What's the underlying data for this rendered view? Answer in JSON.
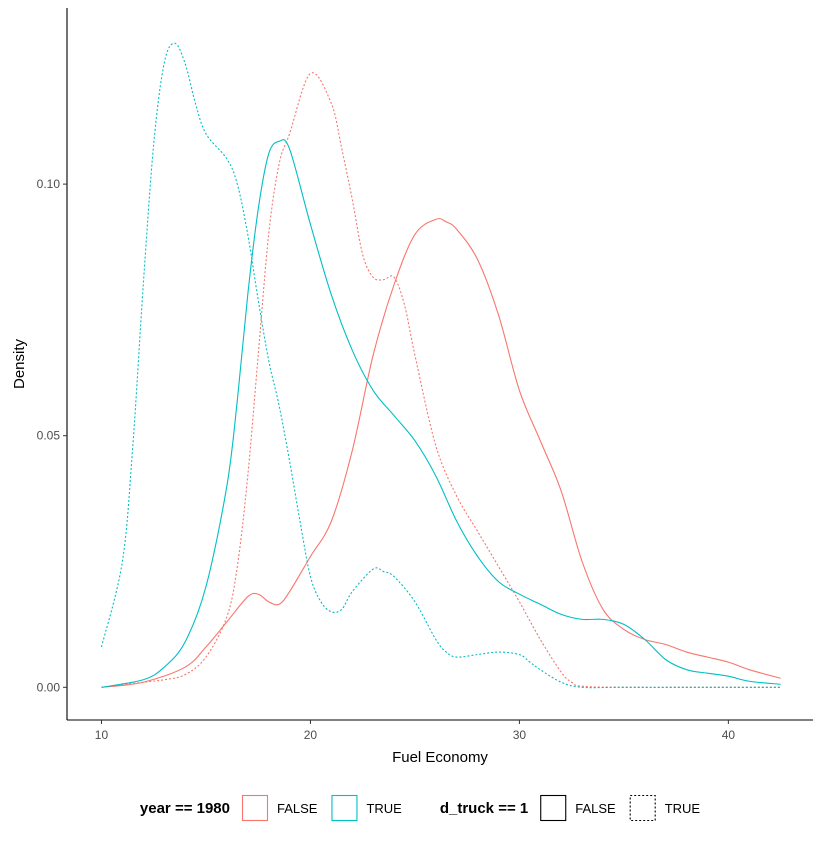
{
  "chart_data": {
    "type": "line",
    "title": "",
    "xlabel": "Fuel Economy",
    "ylabel": "Density",
    "xlim": [
      8.35,
      44.05
    ],
    "ylim": [
      -0.0065,
      0.135
    ],
    "x_ticks": [
      10,
      20,
      30,
      40
    ],
    "x_tick_labels": [
      "10",
      "20",
      "30",
      "40"
    ],
    "y_ticks": [
      0.0,
      0.05,
      0.1
    ],
    "y_tick_labels": [
      "0.00",
      "0.05",
      "0.10"
    ],
    "grid": false,
    "legend_position": "bottom",
    "legends": [
      {
        "title": "year == 1980",
        "kind": "color",
        "entries": [
          {
            "label": "FALSE",
            "color": "#F8766D"
          },
          {
            "label": "TRUE",
            "color": "#00BFC4"
          }
        ]
      },
      {
        "title": "d_truck == 1",
        "kind": "linetype",
        "entries": [
          {
            "label": "FALSE",
            "dash": "solid"
          },
          {
            "label": "TRUE",
            "dash": "dotted"
          }
        ]
      }
    ],
    "series": [
      {
        "year_1980": "FALSE",
        "d_truck": "FALSE",
        "color": "#F8766D",
        "dash": "solid",
        "x": [
          10,
          12,
          14,
          15,
          16,
          17,
          17.5,
          18,
          18.5,
          19,
          20,
          21,
          22,
          23,
          24,
          25,
          26,
          26.5,
          27,
          28,
          29,
          30,
          31,
          32,
          33,
          34,
          35,
          36,
          37,
          38,
          39,
          40,
          41,
          42.5
        ],
        "y": [
          0,
          0.001,
          0.004,
          0.008,
          0.013,
          0.018,
          0.0185,
          0.017,
          0.0165,
          0.019,
          0.026,
          0.033,
          0.047,
          0.066,
          0.08,
          0.09,
          0.093,
          0.0925,
          0.091,
          0.085,
          0.074,
          0.059,
          0.049,
          0.039,
          0.025,
          0.0155,
          0.0115,
          0.0095,
          0.0085,
          0.007,
          0.006,
          0.005,
          0.0035,
          0.0018
        ]
      },
      {
        "year_1980": "FALSE",
        "d_truck": "TRUE",
        "color": "#F8766D",
        "dash": "dotted",
        "x": [
          10,
          12,
          13,
          14,
          15,
          16,
          16.5,
          17,
          17.5,
          18,
          18.5,
          19,
          20,
          21,
          21.5,
          22,
          22.5,
          23,
          23.5,
          24,
          24.5,
          25,
          26,
          27,
          28,
          29,
          30,
          31,
          32,
          32.5,
          33,
          35,
          40,
          42.5
        ],
        "y": [
          0,
          0.001,
          0.0015,
          0.0025,
          0.006,
          0.014,
          0.024,
          0.042,
          0.066,
          0.09,
          0.104,
          0.11,
          0.122,
          0.116,
          0.107,
          0.097,
          0.086,
          0.0815,
          0.081,
          0.0815,
          0.076,
          0.066,
          0.048,
          0.038,
          0.031,
          0.024,
          0.017,
          0.0095,
          0.003,
          0.001,
          0.0002,
          0,
          0,
          0
        ]
      },
      {
        "year_1980": "TRUE",
        "d_truck": "FALSE",
        "color": "#00BFC4",
        "dash": "solid",
        "x": [
          10,
          12,
          13,
          14,
          15,
          16,
          16.5,
          17,
          17.5,
          18,
          18.5,
          19,
          20,
          21,
          22,
          23,
          24,
          25,
          26,
          27,
          28,
          29,
          30,
          31,
          32,
          33,
          34,
          35,
          36,
          37,
          38,
          39,
          40,
          41,
          42.5
        ],
        "y": [
          0,
          0.0015,
          0.004,
          0.009,
          0.02,
          0.04,
          0.057,
          0.078,
          0.095,
          0.106,
          0.1085,
          0.107,
          0.092,
          0.078,
          0.067,
          0.059,
          0.054,
          0.049,
          0.042,
          0.033,
          0.026,
          0.021,
          0.0185,
          0.0165,
          0.0145,
          0.0135,
          0.0135,
          0.0125,
          0.0095,
          0.0055,
          0.0035,
          0.0028,
          0.0022,
          0.0012,
          0.0006
        ]
      },
      {
        "year_1980": "TRUE",
        "d_truck": "TRUE",
        "color": "#00BFC4",
        "dash": "dotted",
        "x": [
          10,
          11,
          11.5,
          12,
          12.5,
          13,
          13.5,
          14,
          14.5,
          15,
          16,
          16.5,
          17,
          17.5,
          18,
          18.5,
          19,
          19.5,
          20,
          20.5,
          21,
          21.5,
          22,
          23,
          23.5,
          24,
          25,
          26,
          26.5,
          27,
          28,
          29,
          30,
          30.5,
          31,
          32,
          33,
          35,
          40,
          42.5
        ],
        "y": [
          0.008,
          0.025,
          0.048,
          0.08,
          0.108,
          0.124,
          0.128,
          0.124,
          0.116,
          0.11,
          0.105,
          0.1,
          0.09,
          0.077,
          0.065,
          0.056,
          0.045,
          0.033,
          0.022,
          0.017,
          0.015,
          0.0155,
          0.019,
          0.0235,
          0.023,
          0.022,
          0.017,
          0.0095,
          0.007,
          0.006,
          0.0065,
          0.007,
          0.0065,
          0.005,
          0.0035,
          0.001,
          0,
          0,
          0,
          0
        ]
      }
    ]
  }
}
